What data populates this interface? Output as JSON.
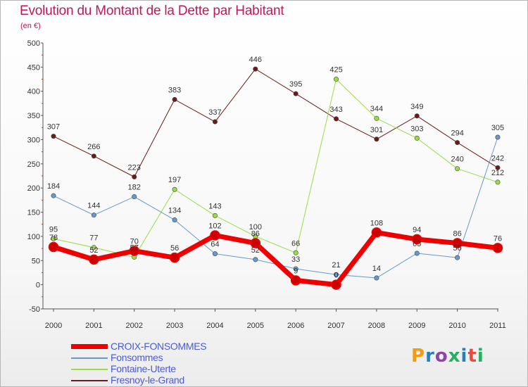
{
  "title": "Evolution du Montant de la Dette par Habitant",
  "subtitle": "(en €)",
  "logo": {
    "text": "Proxiti",
    "colors": [
      "#f39c12",
      "#2980b9",
      "#8e44ad",
      "#27ae60",
      "#2980b9",
      "#e74c3c",
      "#27ae60"
    ]
  },
  "chart_data": {
    "type": "line",
    "title": "Evolution du Montant de la Dette par Habitant",
    "subtitle": "(en €)",
    "ylim": [
      -50,
      500
    ],
    "yticks": [
      -50,
      0,
      50,
      100,
      150,
      200,
      250,
      300,
      350,
      400,
      450,
      500
    ],
    "x": [
      "2000",
      "2001",
      "2002",
      "2003",
      "2004",
      "2005",
      "2006",
      "2007",
      "2008",
      "2009",
      "2010",
      "2011"
    ],
    "grid": false,
    "legend_position": "bottom-left",
    "series": [
      {
        "name": "Fresnoy-le-Grand",
        "color": "#6b1a1a",
        "width": 1,
        "values": [
          307,
          266,
          223,
          383,
          337,
          446,
          395,
          343,
          301,
          349,
          294,
          242
        ],
        "labels": [
          "307",
          "266",
          "223",
          "383",
          "337",
          "446",
          "395",
          "343",
          "301",
          "349",
          "294",
          "242"
        ]
      },
      {
        "name": "Fontaine-Uterte",
        "color": "#99dd44",
        "width": 1,
        "values": [
          95,
          77,
          57,
          197,
          143,
          100,
          66,
          425,
          344,
          303,
          240,
          212
        ],
        "labels": [
          "95",
          "77",
          "57",
          "197",
          "143",
          "100",
          "66",
          "425",
          "344",
          "303",
          "240",
          "212"
        ]
      },
      {
        "name": "Fonsommes",
        "color": "#6699cc",
        "width": 1,
        "values": [
          184,
          144,
          182,
          134,
          64,
          52,
          33,
          21,
          14,
          65,
          56,
          305
        ],
        "labels": [
          "184",
          "144",
          "182",
          "134",
          "64",
          "52",
          "33",
          "21",
          "14",
          "65",
          "56",
          "305"
        ]
      },
      {
        "name": "CROIX-FONSOMMES",
        "color": "#ee0000",
        "width": 7,
        "values": [
          78,
          52,
          70,
          56,
          102,
          86,
          9,
          0,
          108,
          94,
          86,
          76
        ],
        "labels": [
          "78",
          "52",
          "70",
          "56",
          "102",
          "86",
          "9",
          "0",
          "108",
          "94",
          "86",
          "76"
        ]
      }
    ],
    "legend_order": [
      "CROIX-FONSOMMES",
      "Fonsommes",
      "Fontaine-Uterte",
      "Fresnoy-le-Grand"
    ]
  }
}
